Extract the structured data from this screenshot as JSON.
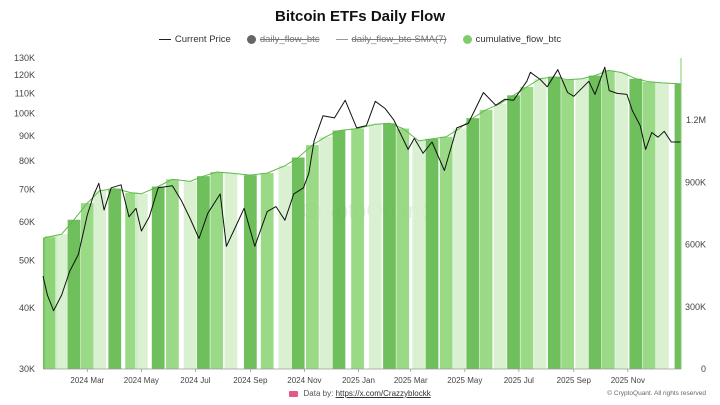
{
  "chart_data": {
    "type": "bar",
    "title": "Bitcoin ETFs Daily Flow",
    "legend": [
      {
        "name": "Current Price",
        "color": "#222222",
        "marker": "line",
        "visible": true
      },
      {
        "name": "daily_flow_btc",
        "color": "#666666",
        "marker": "dot",
        "visible": false
      },
      {
        "name": "daily_flow_btc-SMA(7)",
        "color": "#999999",
        "marker": "line",
        "visible": false
      },
      {
        "name": "cumulative_flow_btc",
        "color": "#7fcc6a",
        "marker": "dot",
        "visible": true
      }
    ],
    "legend_position": "top-center",
    "x_ticks": [
      "2024 Mar",
      "2024 May",
      "2024 Jul",
      "2024 Sep",
      "2024 Nov",
      "2025 Jan",
      "2025 Mar",
      "2025 May",
      "2025 Jul",
      "2025 Sep",
      "2025 Nov"
    ],
    "x_range": [
      "2024-01-11",
      "2025-12-31"
    ],
    "left_axis": {
      "scale": "log",
      "range": [
        30000,
        130000
      ],
      "ticks": [
        "30K",
        "40K",
        "50K",
        "60K",
        "70K",
        "80K",
        "90K",
        "100K",
        "110K",
        "120K",
        "130K"
      ],
      "tick_values": [
        30000,
        40000,
        50000,
        60000,
        70000,
        80000,
        90000,
        100000,
        110000,
        120000,
        130000
      ]
    },
    "right_axis": {
      "scale": "linear",
      "range": [
        0,
        1500000
      ],
      "ticks": [
        "0",
        "300K",
        "600K",
        "900K",
        "1.2M"
      ],
      "tick_values": [
        0,
        300000,
        600000,
        900000,
        1200000
      ]
    },
    "grid": false,
    "series": [
      {
        "name": "cumulative_flow_btc",
        "axis": "right",
        "points": [
          [
            "2024-01-11",
            630000
          ],
          [
            "2024-01-20",
            640000
          ],
          [
            "2024-02-01",
            650000
          ],
          [
            "2024-02-15",
            720000
          ],
          [
            "2024-03-01",
            800000
          ],
          [
            "2024-03-15",
            860000
          ],
          [
            "2024-04-01",
            870000
          ],
          [
            "2024-04-20",
            850000
          ],
          [
            "2024-05-01",
            845000
          ],
          [
            "2024-05-20",
            880000
          ],
          [
            "2024-06-05",
            915000
          ],
          [
            "2024-06-25",
            905000
          ],
          [
            "2024-07-10",
            930000
          ],
          [
            "2024-07-25",
            950000
          ],
          [
            "2024-08-10",
            945000
          ],
          [
            "2024-09-01",
            935000
          ],
          [
            "2024-09-20",
            945000
          ],
          [
            "2024-10-10",
            980000
          ],
          [
            "2024-10-25",
            1020000
          ],
          [
            "2024-11-10",
            1080000
          ],
          [
            "2024-11-25",
            1120000
          ],
          [
            "2024-12-10",
            1150000
          ],
          [
            "2024-12-31",
            1160000
          ],
          [
            "2025-01-20",
            1180000
          ],
          [
            "2025-02-05",
            1185000
          ],
          [
            "2025-02-20",
            1160000
          ],
          [
            "2025-03-10",
            1100000
          ],
          [
            "2025-03-25",
            1110000
          ],
          [
            "2025-04-10",
            1120000
          ],
          [
            "2025-04-25",
            1160000
          ],
          [
            "2025-05-10",
            1210000
          ],
          [
            "2025-05-25",
            1250000
          ],
          [
            "2025-06-10",
            1280000
          ],
          [
            "2025-06-25",
            1320000
          ],
          [
            "2025-07-10",
            1360000
          ],
          [
            "2025-07-25",
            1400000
          ],
          [
            "2025-08-10",
            1410000
          ],
          [
            "2025-08-25",
            1395000
          ],
          [
            "2025-09-10",
            1400000
          ],
          [
            "2025-09-25",
            1415000
          ],
          [
            "2025-10-10",
            1440000
          ],
          [
            "2025-10-25",
            1430000
          ],
          [
            "2025-11-10",
            1400000
          ],
          [
            "2025-11-25",
            1385000
          ],
          [
            "2025-12-10",
            1380000
          ],
          [
            "2025-12-31",
            1375000
          ]
        ]
      },
      {
        "name": "Current Price",
        "axis": "left",
        "points": [
          [
            "2024-01-11",
            46500
          ],
          [
            "2024-01-16",
            42500
          ],
          [
            "2024-01-23",
            39500
          ],
          [
            "2024-02-01",
            42500
          ],
          [
            "2024-02-10",
            47500
          ],
          [
            "2024-02-20",
            51500
          ],
          [
            "2024-03-01",
            62000
          ],
          [
            "2024-03-08",
            68000
          ],
          [
            "2024-03-14",
            72000
          ],
          [
            "2024-03-20",
            63500
          ],
          [
            "2024-03-28",
            70500
          ],
          [
            "2024-04-08",
            71500
          ],
          [
            "2024-04-17",
            61500
          ],
          [
            "2024-04-25",
            64000
          ],
          [
            "2024-05-01",
            57500
          ],
          [
            "2024-05-10",
            61500
          ],
          [
            "2024-05-20",
            70500
          ],
          [
            "2024-06-05",
            71200
          ],
          [
            "2024-06-15",
            66500
          ],
          [
            "2024-06-25",
            61000
          ],
          [
            "2024-07-05",
            55500
          ],
          [
            "2024-07-15",
            62500
          ],
          [
            "2024-07-29",
            68500
          ],
          [
            "2024-08-05",
            53500
          ],
          [
            "2024-08-15",
            58500
          ],
          [
            "2024-08-25",
            64000
          ],
          [
            "2024-09-06",
            53500
          ],
          [
            "2024-09-20",
            63000
          ],
          [
            "2024-09-30",
            64500
          ],
          [
            "2024-10-10",
            60500
          ],
          [
            "2024-10-20",
            68500
          ],
          [
            "2024-10-31",
            70500
          ],
          [
            "2024-11-06",
            75500
          ],
          [
            "2024-11-12",
            88000
          ],
          [
            "2024-11-22",
            99000
          ],
          [
            "2024-12-05",
            98000
          ],
          [
            "2024-12-17",
            106500
          ],
          [
            "2024-12-30",
            93500
          ],
          [
            "2025-01-10",
            94500
          ],
          [
            "2025-01-20",
            106000
          ],
          [
            "2025-01-31",
            102500
          ],
          [
            "2025-02-10",
            97000
          ],
          [
            "2025-02-26",
            84500
          ],
          [
            "2025-03-05",
            89000
          ],
          [
            "2025-03-15",
            83000
          ],
          [
            "2025-03-25",
            87500
          ],
          [
            "2025-04-08",
            76500
          ],
          [
            "2025-04-22",
            93500
          ],
          [
            "2025-05-05",
            95500
          ],
          [
            "2025-05-22",
            110500
          ],
          [
            "2025-06-05",
            104000
          ],
          [
            "2025-06-15",
            107000
          ],
          [
            "2025-06-25",
            106500
          ],
          [
            "2025-07-10",
            116500
          ],
          [
            "2025-07-14",
            121500
          ],
          [
            "2025-07-25",
            117500
          ],
          [
            "2025-08-02",
            113500
          ],
          [
            "2025-08-14",
            123000
          ],
          [
            "2025-08-25",
            110500
          ],
          [
            "2025-09-01",
            108500
          ],
          [
            "2025-09-18",
            116500
          ],
          [
            "2025-09-25",
            109500
          ],
          [
            "2025-10-06",
            124500
          ],
          [
            "2025-10-11",
            111500
          ],
          [
            "2025-10-20",
            110000
          ],
          [
            "2025-10-31",
            109500
          ],
          [
            "2025-11-06",
            101500
          ],
          [
            "2025-11-15",
            94500
          ],
          [
            "2025-11-21",
            84500
          ],
          [
            "2025-11-28",
            91500
          ],
          [
            "2025-12-05",
            89500
          ],
          [
            "2025-12-12",
            92000
          ],
          [
            "2025-12-20",
            87500
          ],
          [
            "2025-12-31",
            87500
          ]
        ]
      }
    ],
    "watermark": "CryptoQuant"
  },
  "footer": {
    "data_by_label": "Data by:",
    "data_by_link": "https://x.com/Crazzyblockk",
    "copyright": "© CryptoQuant. All rights reserved"
  },
  "colors": {
    "bar_fill": "#8fd67a",
    "bar_light": "#d6f0cc",
    "bar_dark": "#5fb84a",
    "price_line": "#111111",
    "axis_text": "#444444"
  }
}
